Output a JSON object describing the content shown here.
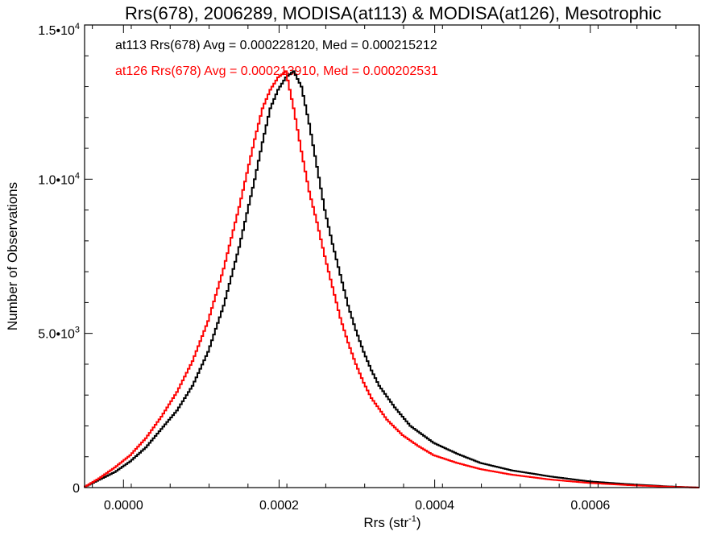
{
  "chart_data": {
    "type": "line",
    "title": "Rrs(678), 2006289, MODISA(at113) & MODISA(at126), Mesotrophic",
    "xlabel": "Rrs (str",
    "xlabel_sup": "-1",
    "xlabel_end": ")",
    "ylabel": "Number of Observations",
    "xlim": [
      -5e-05,
      0.00074
    ],
    "ylim": [
      0,
      15000
    ],
    "x_ticks": [
      {
        "value": 0.0,
        "label": "0.0000"
      },
      {
        "value": 0.0002,
        "label": "0.0002"
      },
      {
        "value": 0.0004,
        "label": "0.0004"
      },
      {
        "value": 0.0006,
        "label": "0.0006"
      }
    ],
    "y_ticks": [
      {
        "value": 0,
        "label": "0",
        "sup": ""
      },
      {
        "value": 5000,
        "label": "5.0•10",
        "sup": "3"
      },
      {
        "value": 10000,
        "label": "1.0•10",
        "sup": "4"
      },
      {
        "value": 15000,
        "label": "1.5•10",
        "sup": "4"
      }
    ],
    "grid": false,
    "series": [
      {
        "name": "at113",
        "color": "#000000",
        "stats_text": "at113 Rrs(678) Avg = 0.000228120, Med = 0.000215212",
        "x": [
          -5e-05,
          -3e-05,
          -1e-05,
          1e-05,
          3e-05,
          5e-05,
          7e-05,
          9e-05,
          0.00011,
          0.00013,
          0.00015,
          0.00017,
          0.00018,
          0.00019,
          0.0002,
          0.00021,
          0.00022,
          0.00023,
          0.00024,
          0.00025,
          0.00026,
          0.00027,
          0.00028,
          0.00029,
          0.0003,
          0.00031,
          0.00032,
          0.00033,
          0.00035,
          0.00037,
          0.0004,
          0.00043,
          0.00046,
          0.0005,
          0.00055,
          0.0006,
          0.00065,
          0.0007,
          0.00074
        ],
        "values": [
          0,
          250,
          500,
          850,
          1300,
          1900,
          2500,
          3300,
          4400,
          5900,
          7800,
          10000,
          11200,
          12300,
          12900,
          13300,
          13500,
          13000,
          11800,
          10400,
          9000,
          7900,
          6900,
          5900,
          5100,
          4400,
          3800,
          3300,
          2600,
          2000,
          1450,
          1100,
          800,
          560,
          360,
          200,
          110,
          40,
          0
        ]
      },
      {
        "name": "at126",
        "color": "#ff0000",
        "stats_text": "at126 Rrs(678) Avg = 0.000213910, Med = 0.000202531",
        "x": [
          -5e-05,
          -3e-05,
          -1e-05,
          1e-05,
          3e-05,
          5e-05,
          7e-05,
          9e-05,
          0.00011,
          0.00013,
          0.00015,
          0.00016,
          0.00017,
          0.00018,
          0.00019,
          0.0002,
          0.00021,
          0.00022,
          0.00023,
          0.00024,
          0.00025,
          0.00026,
          0.00027,
          0.00028,
          0.00029,
          0.0003,
          0.00031,
          0.00032,
          0.00034,
          0.00036,
          0.00038,
          0.0004,
          0.00043,
          0.00046,
          0.0005,
          0.00055,
          0.0006,
          0.00065,
          0.0007,
          0.00074
        ],
        "values": [
          0,
          300,
          650,
          1050,
          1600,
          2300,
          3100,
          4100,
          5400,
          7100,
          9100,
          10200,
          11300,
          12300,
          12900,
          13300,
          13500,
          12300,
          10900,
          9600,
          8600,
          7500,
          6500,
          5500,
          4700,
          4000,
          3400,
          2900,
          2200,
          1700,
          1350,
          1050,
          800,
          600,
          420,
          260,
          150,
          80,
          30,
          0
        ]
      }
    ]
  }
}
